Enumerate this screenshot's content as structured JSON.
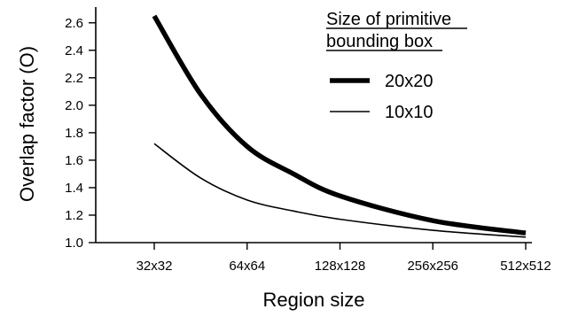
{
  "chart_data": {
    "type": "line",
    "xlabel": "Region size",
    "ylabel": "Overlap factor (O)",
    "categories": [
      "32x32",
      "64x64",
      "128x128",
      "256x256",
      "512x512"
    ],
    "x_range_index": [
      0,
      4
    ],
    "ylim": [
      1.0,
      2.65
    ],
    "yticks": [
      "1.0",
      "1.2",
      "1.4",
      "1.6",
      "1.8",
      "2.0",
      "2.2",
      "2.4",
      "2.6"
    ],
    "grid": false,
    "legend": {
      "title_line1": "Size of primitive",
      "title_line2": "bounding box",
      "placement": "top-right"
    },
    "series": [
      {
        "name": "20x20",
        "line_weight": "thick",
        "points": [
          {
            "x": 0.0,
            "y": 2.65
          },
          {
            "x": 0.5,
            "y": 2.08
          },
          {
            "x": 1.0,
            "y": 1.7
          },
          {
            "x": 1.5,
            "y": 1.5
          },
          {
            "x": 2.0,
            "y": 1.34
          },
          {
            "x": 3.0,
            "y": 1.16
          },
          {
            "x": 4.0,
            "y": 1.07
          }
        ]
      },
      {
        "name": "10x10",
        "line_weight": "thin",
        "points": [
          {
            "x": 0.0,
            "y": 1.72
          },
          {
            "x": 0.5,
            "y": 1.47
          },
          {
            "x": 1.0,
            "y": 1.31
          },
          {
            "x": 1.5,
            "y": 1.23
          },
          {
            "x": 2.0,
            "y": 1.17
          },
          {
            "x": 3.0,
            "y": 1.09
          },
          {
            "x": 4.0,
            "y": 1.04
          }
        ]
      }
    ]
  }
}
